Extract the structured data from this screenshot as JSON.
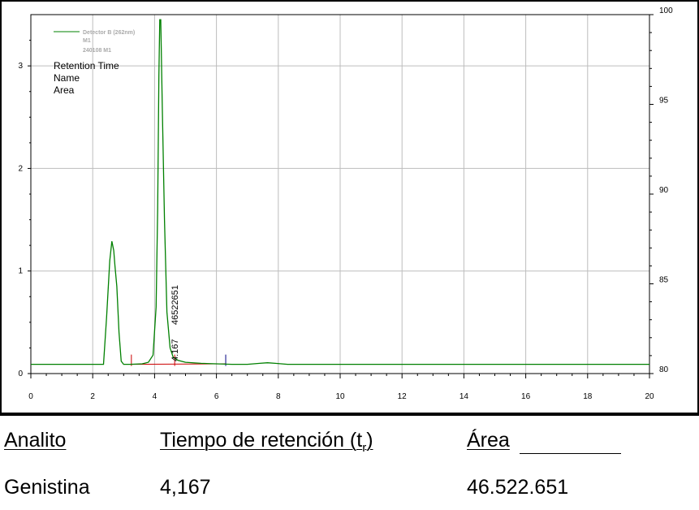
{
  "chart_data": {
    "type": "line",
    "legend": {
      "series_name": "Detector B (262nm)",
      "series_lines": [
        "M1",
        "240108 M1"
      ],
      "fields": [
        "Retention Time",
        "Name",
        "Area"
      ]
    },
    "series": [
      {
        "name": "Detector B (262nm)",
        "color": "#008000",
        "x": [
          0,
          2.35,
          2.45,
          2.55,
          2.62,
          2.68,
          2.72,
          2.78,
          2.85,
          2.92,
          3.0,
          3.2,
          3.6,
          3.8,
          3.95,
          4.05,
          4.1,
          4.14,
          4.167,
          4.2,
          4.25,
          4.32,
          4.4,
          4.5,
          4.6,
          4.75,
          5.0,
          5.5,
          6.0,
          6.5,
          7.0,
          7.4,
          7.65,
          7.9,
          8.3,
          20
        ],
        "y": [
          0.09,
          0.09,
          0.55,
          1.1,
          1.29,
          1.2,
          1.05,
          0.85,
          0.4,
          0.12,
          0.09,
          0.09,
          0.095,
          0.11,
          0.18,
          0.65,
          1.6,
          2.9,
          3.45,
          3.45,
          2.6,
          1.5,
          0.6,
          0.25,
          0.16,
          0.13,
          0.11,
          0.1,
          0.095,
          0.09,
          0.09,
          0.1,
          0.105,
          0.1,
          0.09,
          0.09
        ]
      }
    ],
    "baseline": {
      "color": "#cc0000",
      "x": [
        3.25,
        6.3
      ],
      "y": [
        0.09,
        0.095
      ],
      "markers": [
        3.25,
        4.65,
        6.3
      ]
    },
    "peak_labels": [
      "4.167",
      "46522651"
    ],
    "x_ticks": [
      "0",
      "2",
      "4",
      "6",
      "8",
      "10",
      "12",
      "14",
      "16",
      "18",
      "20"
    ],
    "y_ticks": [
      "0",
      "1",
      "2",
      "3"
    ],
    "y2_ticks": [
      "80",
      "85",
      "90",
      "95",
      "100"
    ],
    "xlim": [
      0,
      20
    ],
    "ylim": [
      0,
      3.5
    ],
    "y2lim": [
      80,
      100
    ],
    "grid": true
  },
  "table": {
    "headers": [
      "Analito",
      "Tiempo de retención (t",
      "r",
      ")",
      "Área"
    ],
    "row": [
      "Genistina",
      "4,167",
      "46.522.651"
    ]
  }
}
